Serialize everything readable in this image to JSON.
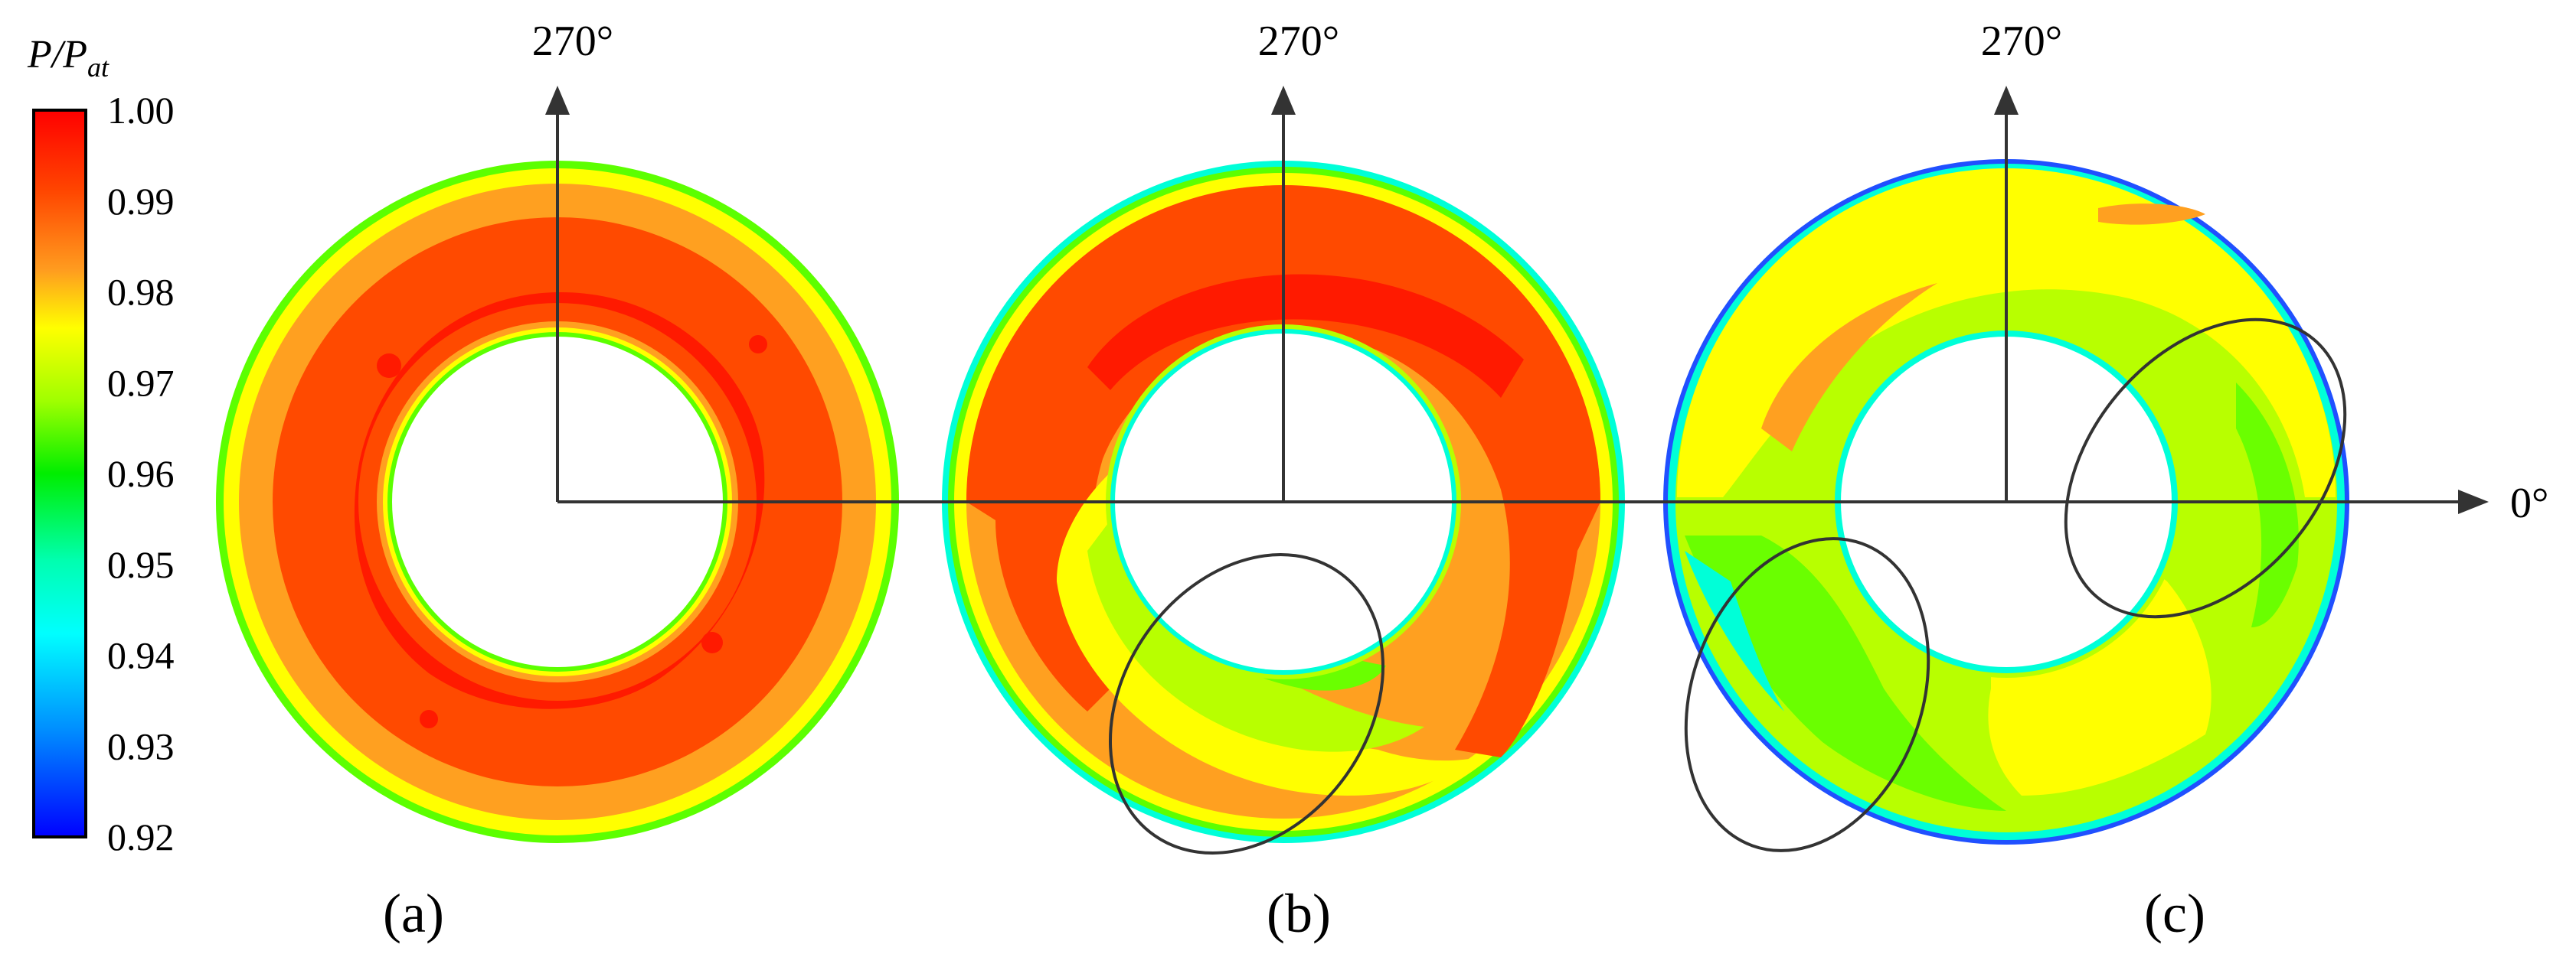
{
  "colorbar": {
    "title_main": "P/P",
    "title_sub": "at",
    "ticks": [
      "1.00",
      "0.99",
      "0.98",
      "0.97",
      "0.96",
      "0.95",
      "0.94",
      "0.93",
      "0.92"
    ],
    "gradient_colors": [
      "#ff0000",
      "#ff4500",
      "#ff9c1f",
      "#ffff00",
      "#a0ff00",
      "#00ee00",
      "#00ffb0",
      "#00ffff",
      "#0090ff",
      "#0000ff"
    ]
  },
  "axes": {
    "vertical_label": "270°",
    "horizontal_label": "0°"
  },
  "panels": [
    {
      "label": "(a)",
      "letter": "a"
    },
    {
      "label": "(b)",
      "letter": "b"
    },
    {
      "label": "(c)",
      "letter": "c"
    }
  ],
  "contour_colors": {
    "deep_red": "#ff1a00",
    "orange_red": "#ff4a00",
    "orange": "#ffa020",
    "yellow": "#ffff00",
    "yellow_green": "#b8ff00",
    "green": "#6aff00",
    "cyan": "#00ffd8",
    "blue_edge": "#2050ff"
  }
}
